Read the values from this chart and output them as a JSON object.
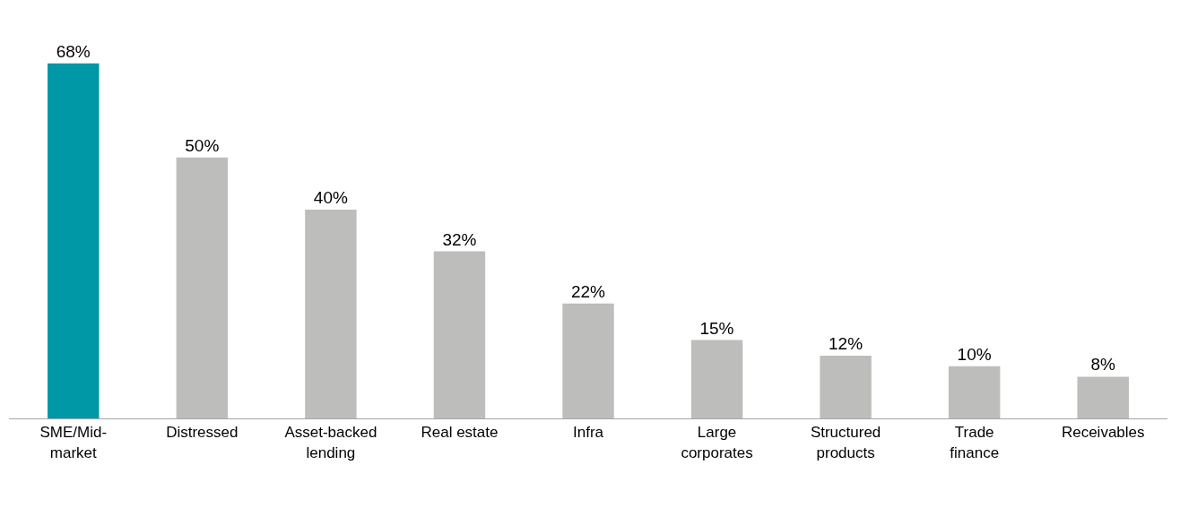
{
  "chart_data": {
    "type": "bar",
    "categories": [
      "SME/Mid-\nmarket",
      "Distressed",
      "Asset-backed\nlending",
      "Real estate",
      "Infra",
      "Large\ncorporates",
      "Structured\nproducts",
      "Trade\nfinance",
      "Receivables"
    ],
    "values": [
      68,
      50,
      40,
      32,
      22,
      15,
      12,
      10,
      8
    ],
    "value_labels": [
      "68%",
      "50%",
      "40%",
      "32%",
      "22%",
      "15%",
      "12%",
      "10%",
      "8%"
    ],
    "colors": [
      "#0097a7",
      "#bdbdbb",
      "#bdbdbb",
      "#bdbdbb",
      "#bdbdbb",
      "#bdbdbb",
      "#bdbdbb",
      "#bdbdbb",
      "#bdbdbb"
    ],
    "legend": false
  }
}
